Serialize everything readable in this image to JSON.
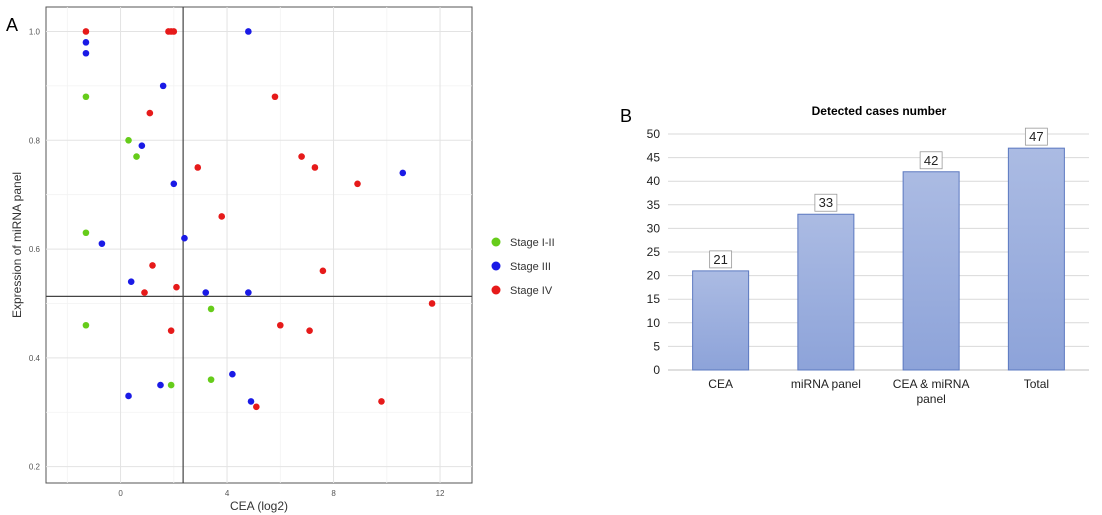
{
  "panel_labels": {
    "a": "A",
    "b": "B"
  },
  "chart_data": [
    {
      "type": "scatter",
      "title": "",
      "xlabel": "CEA (log2)",
      "ylabel": "Expression of miRNA panel",
      "xlim": [
        -2.8,
        13.2
      ],
      "ylim": [
        0.17,
        1.045
      ],
      "xticks": [
        0,
        4,
        8,
        12
      ],
      "yticks": [
        0.2,
        0.4,
        0.6,
        0.8,
        1.0
      ],
      "ytick_labels": [
        "0.2",
        "0.4",
        "0.6",
        "0.8",
        "1.0"
      ],
      "grid": true,
      "legend_position": "right",
      "reference_lines": {
        "x": 2.35,
        "y": 0.513
      },
      "series": [
        {
          "name": "Stage I-II",
          "color": "#66cc1a",
          "x": [
            -1.3,
            0.3,
            0.6,
            -1.3,
            -1.3,
            3.4,
            1.9,
            3.4
          ],
          "y": [
            0.88,
            0.8,
            0.77,
            0.63,
            0.46,
            0.49,
            0.35,
            0.36
          ]
        },
        {
          "name": "Stage III",
          "color": "#1a1ae6",
          "x": [
            -1.3,
            -1.3,
            4.8,
            1.6,
            0.8,
            2.0,
            10.6,
            -0.7,
            2.4,
            0.4,
            3.2,
            4.8,
            0.3,
            1.5,
            4.2,
            4.9
          ],
          "y": [
            0.98,
            0.96,
            1.0,
            0.9,
            0.79,
            0.72,
            0.74,
            0.61,
            0.62,
            0.54,
            0.52,
            0.52,
            0.33,
            0.35,
            0.37,
            0.32
          ]
        },
        {
          "name": "Stage IV",
          "color": "#e61a1a",
          "x": [
            -1.3,
            1.8,
            1.9,
            2.0,
            5.8,
            1.1,
            6.8,
            7.3,
            2.9,
            8.9,
            3.8,
            1.2,
            7.6,
            0.9,
            2.1,
            11.7,
            6.0,
            1.9,
            7.1,
            9.8,
            5.1
          ],
          "y": [
            1.0,
            1.0,
            1.0,
            1.0,
            0.88,
            0.85,
            0.77,
            0.75,
            0.75,
            0.72,
            0.66,
            0.57,
            0.56,
            0.52,
            0.53,
            0.5,
            0.46,
            0.45,
            0.45,
            0.32,
            0.31
          ]
        }
      ]
    },
    {
      "type": "bar",
      "title": "Detected cases number",
      "xlabel": "",
      "ylabel": "",
      "categories": [
        [
          "CEA"
        ],
        [
          "miRNA panel"
        ],
        [
          "CEA & miRNA",
          "panel"
        ],
        [
          "Total"
        ]
      ],
      "values": [
        21,
        33,
        42,
        47
      ],
      "data_labels": [
        "21",
        "33",
        "42",
        "47"
      ],
      "ylim": [
        0,
        50
      ],
      "yticks": [
        0,
        5,
        10,
        15,
        20,
        25,
        30,
        35,
        40,
        45,
        50
      ],
      "grid": true,
      "bar_color": "#9aaedd"
    }
  ]
}
